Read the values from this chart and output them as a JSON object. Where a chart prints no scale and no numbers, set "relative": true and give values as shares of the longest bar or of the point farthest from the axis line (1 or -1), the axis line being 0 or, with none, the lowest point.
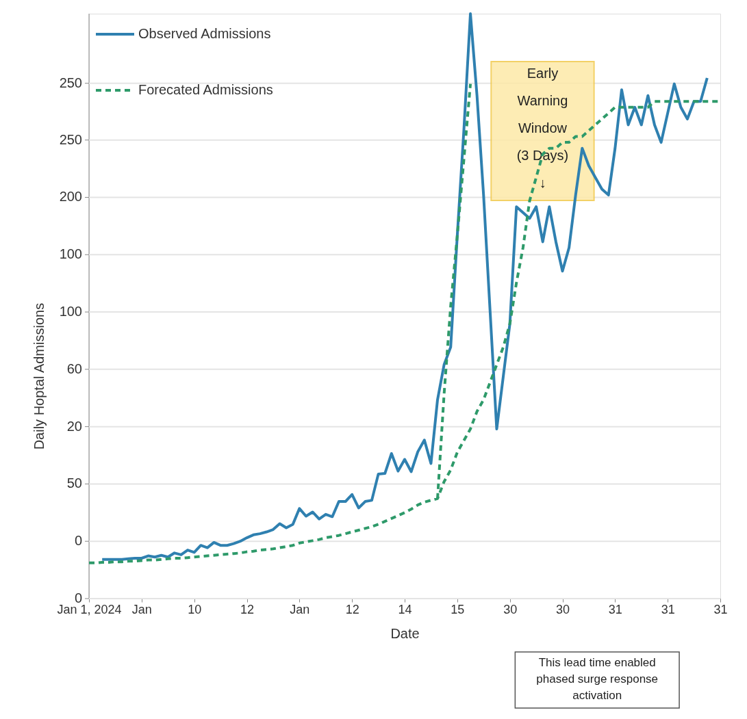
{
  "chart_data": {
    "type": "line",
    "relative": true,
    "xlabel": "Date",
    "ylabel": "Daily Hoptal Admissions",
    "categories": [
      "Jan 1, 2024",
      null,
      null,
      null,
      null,
      null,
      null,
      null,
      "Jan",
      null,
      null,
      null,
      null,
      null,
      null,
      null,
      "10",
      null,
      null,
      null,
      null,
      null,
      null,
      null,
      "12",
      null,
      null,
      null,
      null,
      null,
      null,
      null,
      "Jan",
      null,
      null,
      null,
      null,
      null,
      null,
      null,
      "12",
      null,
      null,
      null,
      null,
      null,
      null,
      null,
      "14",
      null,
      null,
      null,
      null,
      null,
      null,
      null,
      "15",
      null,
      null,
      null,
      null,
      null,
      null,
      null,
      "30",
      null,
      null,
      null,
      null,
      null,
      null,
      null,
      "30",
      null,
      null,
      null,
      null,
      null,
      null,
      null,
      "31",
      null,
      null,
      null,
      null,
      null,
      null,
      null,
      "31",
      null,
      null,
      null,
      null,
      null,
      null,
      null,
      "31"
    ],
    "legend": "top left",
    "series": [
      {
        "name": "Observed Admissions",
        "color": "#2f80b0",
        "line_style": "solid",
        "values": [
          null,
          null,
          0.067,
          0.067,
          0.067,
          0.067,
          0.068,
          0.069,
          0.069,
          0.073,
          0.071,
          0.074,
          0.071,
          0.078,
          0.075,
          0.083,
          0.079,
          0.091,
          0.087,
          0.096,
          0.091,
          0.091,
          0.094,
          0.098,
          0.104,
          0.109,
          0.111,
          0.114,
          0.118,
          0.128,
          0.121,
          0.127,
          0.154,
          0.141,
          0.148,
          0.136,
          0.144,
          0.14,
          0.166,
          0.166,
          0.178,
          0.155,
          0.166,
          0.168,
          0.213,
          0.214,
          0.248,
          0.218,
          0.238,
          0.217,
          0.251,
          0.271,
          0.231,
          0.34,
          0.4,
          0.43,
          0.62,
          0.8,
          1,
          0.86,
          0.69,
          0.49,
          0.29,
          0.38,
          0.47,
          0.67,
          0.66,
          0.65,
          0.67,
          0.61,
          0.67,
          0.61,
          0.56,
          0.6,
          0.69,
          0.77,
          0.74,
          0.72,
          0.7,
          0.69,
          0.77,
          0.87,
          0.81,
          0.84,
          0.81,
          0.86,
          0.81,
          0.78,
          0.83,
          0.88,
          0.84,
          0.82,
          0.85,
          0.85,
          0.89,
          null,
          null
        ]
      },
      {
        "name": "Forecated Admissions",
        "color": "#2e9a6a",
        "line_style": "dashed",
        "values": [
          0.061,
          0.061,
          0.062,
          0.062,
          0.063,
          0.063,
          0.064,
          0.064,
          0.065,
          0.066,
          0.066,
          0.067,
          0.068,
          0.069,
          0.069,
          0.07,
          0.071,
          0.072,
          0.073,
          0.074,
          0.075,
          0.076,
          0.077,
          0.078,
          0.08,
          0.081,
          0.083,
          0.084,
          0.085,
          0.087,
          0.089,
          0.091,
          0.095,
          0.097,
          0.099,
          0.101,
          0.104,
          0.106,
          0.108,
          0.111,
          0.114,
          0.117,
          0.12,
          0.123,
          0.127,
          0.132,
          0.137,
          0.142,
          0.147,
          0.153,
          0.16,
          0.165,
          0.168,
          0.171,
          0.2,
          0.22,
          0.25,
          0.27,
          0.29,
          0.32,
          0.34,
          0.37,
          0.4,
          0.43,
          0.47,
          0.54,
          0.6,
          0.68,
          0.72,
          0.76,
          0.77,
          0.77,
          0.78,
          0.78,
          0.79,
          0.79,
          0.8,
          0.81,
          0.82,
          0.83,
          0.84,
          0.84,
          0.84,
          0.84,
          0.84,
          0.84,
          0.85,
          0.85,
          0.85,
          0.85,
          0.85,
          0.85,
          0.85,
          0.85,
          0.85,
          0.85,
          0.85
        ]
      },
      {
        "color": "#2e9a6a",
        "line_style": "dashed",
        "values": [
          null,
          null,
          null,
          null,
          null,
          null,
          null,
          null,
          null,
          null,
          null,
          null,
          null,
          null,
          null,
          null,
          null,
          null,
          null,
          null,
          null,
          null,
          null,
          null,
          null,
          null,
          null,
          null,
          null,
          null,
          null,
          null,
          null,
          null,
          null,
          null,
          null,
          null,
          null,
          null,
          null,
          null,
          null,
          null,
          null,
          null,
          null,
          null,
          null,
          null,
          null,
          null,
          null,
          0.171,
          0.35,
          0.5,
          0.62,
          0.75,
          0.88,
          null,
          null,
          null,
          null,
          null,
          null,
          null,
          null,
          null,
          null,
          null,
          null,
          null,
          null,
          null,
          null,
          null,
          null,
          null,
          null,
          null,
          null,
          null,
          null,
          null,
          null,
          null,
          null,
          null,
          null,
          null,
          null,
          null,
          null,
          null,
          null,
          null,
          null
        ]
      }
    ],
    "ref_lines": [
      {
        "axis": "y",
        "value": 0,
        "color": "#e4e4e4"
      },
      {
        "axis": "y",
        "value": 0.098,
        "color": "#e4e4e4"
      },
      {
        "axis": "y",
        "value": 0.196,
        "color": "#e4e4e4"
      },
      {
        "axis": "y",
        "value": 0.294,
        "color": "#e4e4e4"
      },
      {
        "axis": "y",
        "value": 0.392,
        "color": "#e4e4e4"
      },
      {
        "axis": "y",
        "value": 0.49,
        "color": "#e4e4e4"
      },
      {
        "axis": "y",
        "value": 0.588,
        "color": "#e4e4e4"
      },
      {
        "axis": "y",
        "value": 0.686,
        "color": "#e4e4e4"
      },
      {
        "axis": "y",
        "value": 0.784,
        "color": "#e4e4e4"
      },
      {
        "axis": "y",
        "value": 0.881,
        "color": "#e4e4e4"
      }
    ],
    "annotations": [
      "Early Warning Window (3 Days) ↓",
      "This lead time enabled phased surge response activation",
      "0",
      "0",
      "50",
      "20",
      "60",
      "100",
      "100",
      "200",
      "250",
      "250"
    ]
  }
}
